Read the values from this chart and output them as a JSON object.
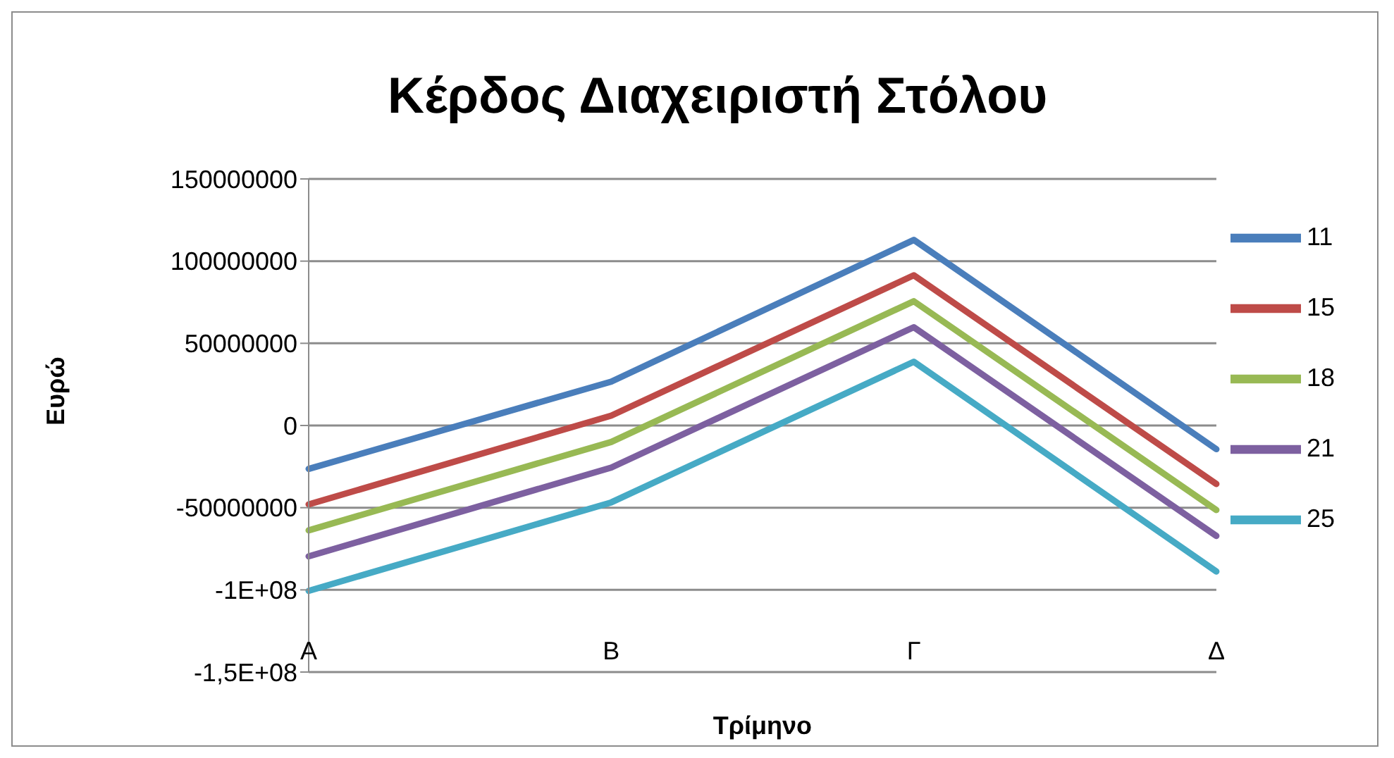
{
  "chart_data": {
    "type": "line",
    "title": "Κέρδος Διαχειριστή Στόλου",
    "xlabel": "Τρίμηνο",
    "ylabel": "Ευρώ",
    "categories": [
      "Α",
      "Β",
      "Γ",
      "Δ"
    ],
    "series": [
      {
        "name": "11",
        "color": "#4a7ebb",
        "values": [
          -26400000,
          26700000,
          112900000,
          -14400000
        ]
      },
      {
        "name": "15",
        "color": "#be4b48",
        "values": [
          -48000000,
          6000000,
          91400000,
          -35600000
        ]
      },
      {
        "name": "18",
        "color": "#98b954",
        "values": [
          -63800000,
          -10000000,
          75600000,
          -51400000
        ]
      },
      {
        "name": "21",
        "color": "#7d60a0",
        "values": [
          -79600000,
          -25600000,
          59800000,
          -67200000
        ]
      },
      {
        "name": "25",
        "color": "#46aac5",
        "values": [
          -100600000,
          -46800000,
          38800000,
          -88800000
        ]
      }
    ],
    "ylim": [
      -150000000,
      150000000
    ],
    "yticks": [
      {
        "value": -150000000,
        "label": "-1,5E+08"
      },
      {
        "value": -100000000,
        "label": "-1E+08"
      },
      -50000000,
      0,
      50000000,
      100000000,
      150000000
    ],
    "grid": "y",
    "legend": "right",
    "marker": "none",
    "line_style": "solid"
  }
}
